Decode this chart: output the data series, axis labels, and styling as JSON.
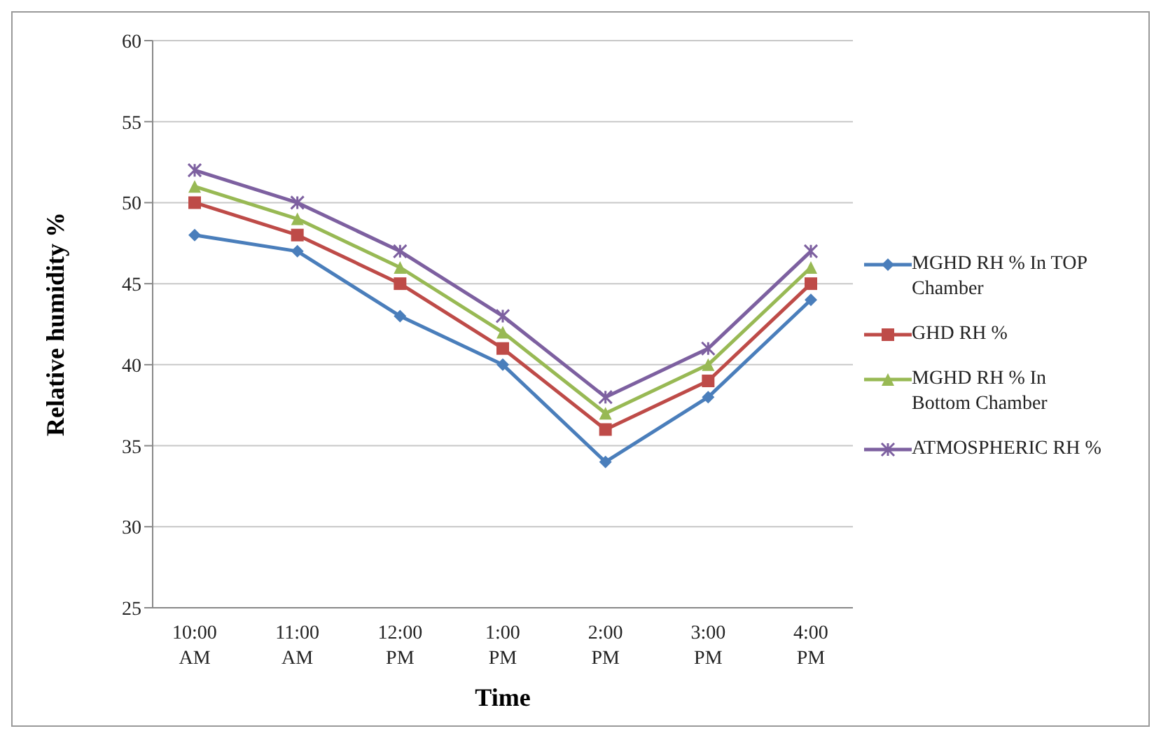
{
  "chart_data": {
    "type": "line",
    "xlabel": "Time",
    "ylabel": "Relative humidity %",
    "categories": [
      "10:00 AM",
      "11:00 AM",
      "12:00 PM",
      "1:00 PM",
      "2:00 PM",
      "3:00 PM",
      "4:00 PM"
    ],
    "series": [
      {
        "name": "MGHD RH % In TOP Chamber",
        "color": "#4a7ebb",
        "marker": "diamond",
        "values": [
          48,
          47,
          43,
          40,
          34,
          38,
          44
        ]
      },
      {
        "name": "GHD RH %",
        "color": "#be4b48",
        "marker": "square",
        "values": [
          50,
          48,
          45,
          41,
          36,
          39,
          45
        ]
      },
      {
        "name": "MGHD RH % In Bottom Chamber",
        "color": "#98b954",
        "marker": "triangle",
        "values": [
          51,
          49,
          46,
          42,
          37,
          40,
          46
        ]
      },
      {
        "name": "ATMOSPHERIC RH %",
        "color": "#7d60a0",
        "marker": "cross",
        "values": [
          52,
          50,
          47,
          43,
          38,
          41,
          47
        ]
      }
    ],
    "ylim": [
      25,
      60
    ],
    "yticks": [
      25,
      30,
      35,
      40,
      45,
      50,
      55,
      60
    ],
    "grid": "y",
    "legend": "right",
    "line_style": "solid"
  }
}
